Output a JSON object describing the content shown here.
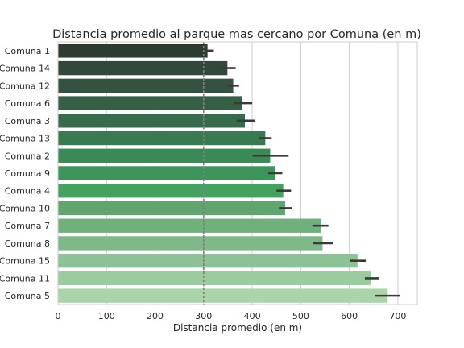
{
  "chart_data": {
    "type": "bar",
    "orientation": "horizontal",
    "title": "Distancia promedio al parque mas cercano por Comuna (en m)",
    "xlabel": "Distancia promedio (en m)",
    "ylabel": "",
    "xlim": [
      0,
      740
    ],
    "xticks": [
      "0",
      "100",
      "200",
      "300",
      "400",
      "500",
      "600",
      "700"
    ],
    "grid": true,
    "reference_line": 300,
    "categories": [
      "Comuna 1",
      "Comuna 14",
      "Comuna 12",
      "Comuna 6",
      "Comuna 3",
      "Comuna 13",
      "Comuna 2",
      "Comuna 9",
      "Comuna 4",
      "Comuna 10",
      "Comuna 7",
      "Comuna 8",
      "Comuna 15",
      "Comuna 11",
      "Comuna 5"
    ],
    "values": [
      308,
      349,
      361,
      379,
      385,
      427,
      437,
      447,
      464,
      468,
      541,
      545,
      617,
      645,
      679
    ],
    "error_low": [
      296,
      333,
      350,
      362,
      368,
      414,
      401,
      433,
      450,
      455,
      524,
      526,
      601,
      632,
      653
    ],
    "error_high": [
      321,
      366,
      373,
      400,
      406,
      440,
      475,
      462,
      480,
      482,
      557,
      566,
      634,
      662,
      705
    ],
    "colors": [
      "#2d3c31",
      "#31483a",
      "#335340",
      "#346045",
      "#366c4b",
      "#387b50",
      "#3a8a55",
      "#3d945a",
      "#44a160",
      "#5ea66e",
      "#6fb07b",
      "#7fb988",
      "#8cc296",
      "#9bcc9f",
      "#aad5ab"
    ]
  }
}
